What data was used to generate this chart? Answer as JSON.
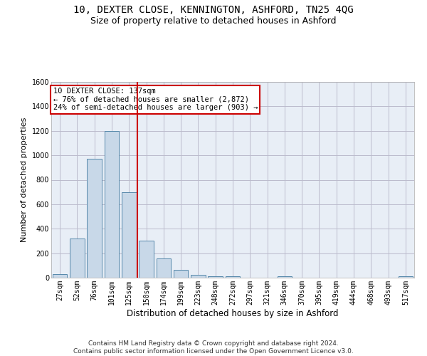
{
  "title": "10, DEXTER CLOSE, KENNINGTON, ASHFORD, TN25 4QG",
  "subtitle": "Size of property relative to detached houses in Ashford",
  "xlabel": "Distribution of detached houses by size in Ashford",
  "ylabel": "Number of detached properties",
  "categories": [
    "27sqm",
    "52sqm",
    "76sqm",
    "101sqm",
    "125sqm",
    "150sqm",
    "174sqm",
    "199sqm",
    "223sqm",
    "248sqm",
    "272sqm",
    "297sqm",
    "321sqm",
    "346sqm",
    "370sqm",
    "395sqm",
    "419sqm",
    "444sqm",
    "468sqm",
    "493sqm",
    "517sqm"
  ],
  "values": [
    30,
    320,
    970,
    1200,
    700,
    300,
    155,
    65,
    25,
    12,
    12,
    0,
    0,
    12,
    0,
    0,
    0,
    0,
    0,
    0,
    12
  ],
  "bar_color": "#c8d8e8",
  "bar_edge_color": "#5588aa",
  "vline_x": 4.5,
  "vline_color": "#cc0000",
  "annotation_text": "10 DEXTER CLOSE: 137sqm\n← 76% of detached houses are smaller (2,872)\n24% of semi-detached houses are larger (903) →",
  "annotation_box_color": "#ffffff",
  "annotation_box_edge": "#cc0000",
  "ylim": [
    0,
    1600
  ],
  "yticks": [
    0,
    200,
    400,
    600,
    800,
    1000,
    1200,
    1400,
    1600
  ],
  "grid_color": "#bbbbcc",
  "bg_color": "#e8eef6",
  "footnote": "Contains HM Land Registry data © Crown copyright and database right 2024.\nContains public sector information licensed under the Open Government Licence v3.0.",
  "title_fontsize": 10,
  "subtitle_fontsize": 9,
  "xlabel_fontsize": 8.5,
  "ylabel_fontsize": 8,
  "tick_fontsize": 7,
  "footnote_fontsize": 6.5,
  "ann_fontsize": 7.5
}
